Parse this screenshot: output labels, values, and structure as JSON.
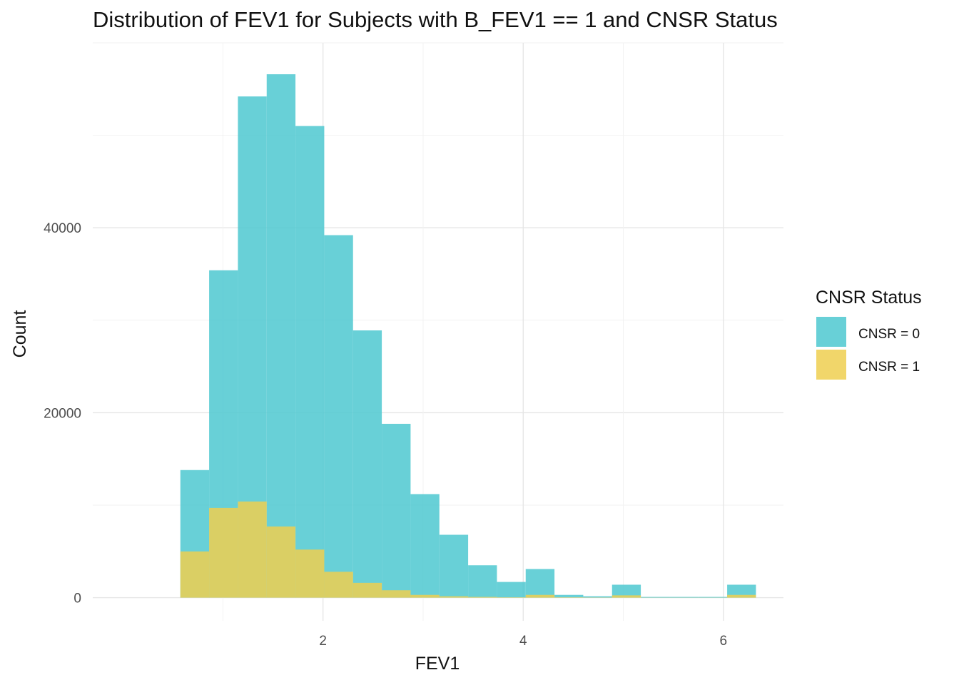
{
  "chart_data": {
    "type": "bar",
    "title": "Distribution of FEV1 for Subjects with B_FEV1 == 1 and CNSR Status",
    "xlabel": "FEV1",
    "ylabel": "Count",
    "xlim": [
      -0.3,
      6.6
    ],
    "ylim": [
      -2500,
      60000
    ],
    "x_ticks": [
      2,
      4,
      6
    ],
    "y_ticks": [
      0,
      20000,
      40000
    ],
    "grid": true,
    "legend": {
      "title": "CNSR Status",
      "position": "right"
    },
    "bin_width": 0.2875,
    "bin_starts": [
      0.575,
      0.8625,
      1.15,
      1.4375,
      1.725,
      2.0125,
      2.3,
      2.5875,
      2.875,
      3.1625,
      3.45,
      3.7375,
      4.025,
      4.3125,
      4.6,
      4.8875,
      5.175,
      5.4625,
      5.75,
      6.0375
    ],
    "series": [
      {
        "name": "CNSR = 0",
        "color": "#4DC8D0",
        "values": [
          13800,
          35400,
          54200,
          56600,
          51000,
          39200,
          28900,
          18800,
          11200,
          6800,
          3500,
          1700,
          3100,
          300,
          150,
          1400,
          80,
          80,
          80,
          1400
        ]
      },
      {
        "name": "CNSR = 1",
        "color": "#EFCF50",
        "values": [
          5000,
          9700,
          10400,
          7700,
          5200,
          2800,
          1600,
          800,
          300,
          150,
          80,
          40,
          300,
          40,
          20,
          250,
          10,
          10,
          10,
          300
        ]
      }
    ]
  }
}
